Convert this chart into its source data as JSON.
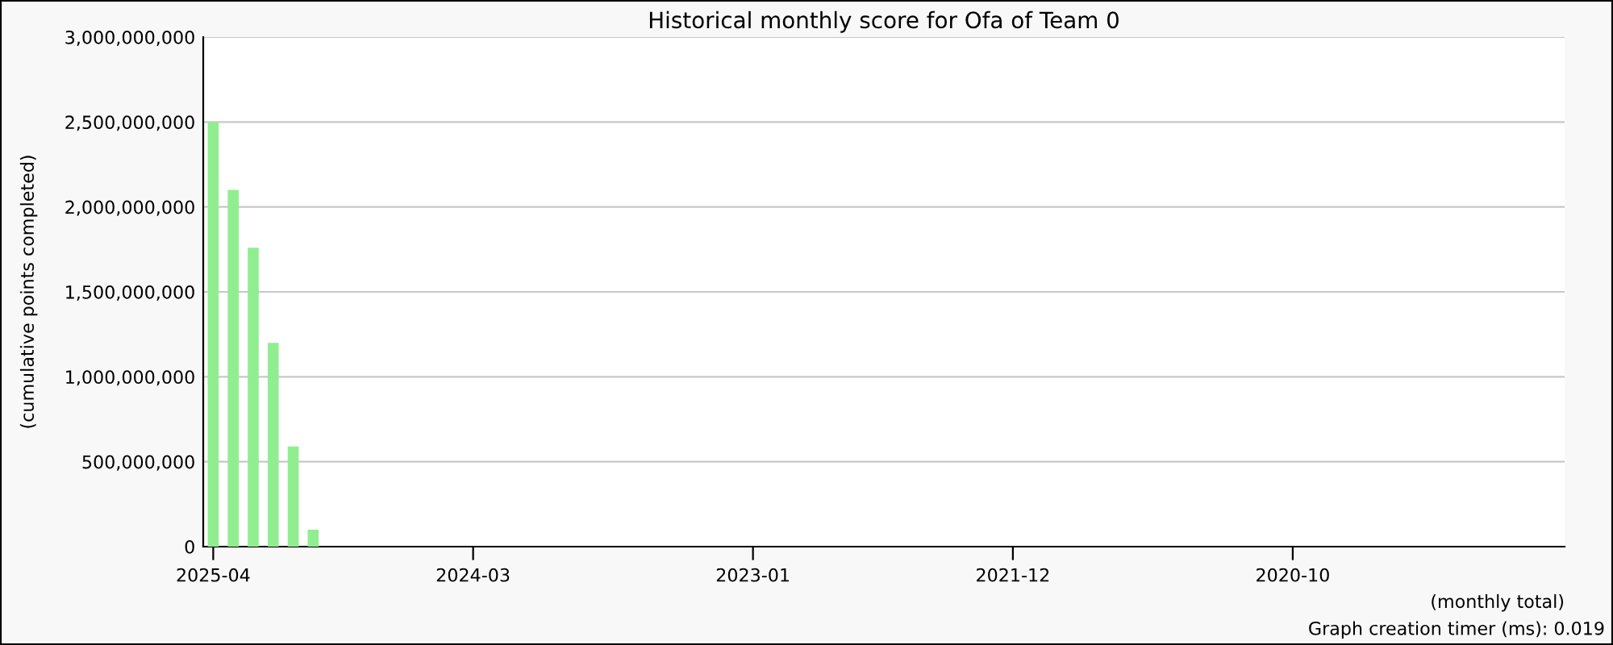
{
  "chart_data": {
    "type": "bar",
    "title": "Historical monthly score for Ofa of Team 0",
    "xlabel": "(monthly total)",
    "ylabel": "(cumulative points completed)",
    "annotations": [
      "Graph creation timer (ms): 0.019"
    ],
    "categories": [
      "2025-04",
      null,
      null,
      null,
      null,
      null,
      null,
      null,
      null,
      null,
      null,
      null,
      null,
      "2024-03",
      null,
      null,
      null,
      null,
      null,
      null,
      null,
      null,
      null,
      null,
      null,
      null,
      null,
      "2023-01",
      null,
      null,
      null,
      null,
      null,
      null,
      null,
      null,
      null,
      null,
      null,
      null,
      "2021-12",
      null,
      null,
      null,
      null,
      null,
      null,
      null,
      null,
      null,
      null,
      null,
      null,
      null,
      "2020-10",
      null,
      null,
      null,
      null,
      null,
      null,
      null,
      null,
      null,
      null,
      null,
      null,
      null
    ],
    "values": [
      2500000000,
      2100000000,
      1760000000,
      1200000000,
      590000000,
      100000000,
      null,
      null,
      null,
      null,
      null,
      null,
      null,
      null,
      null,
      null,
      null,
      null,
      null,
      null,
      null,
      null,
      null,
      null,
      null,
      null,
      null,
      null,
      null,
      null,
      null,
      null,
      null,
      null,
      null,
      null,
      null,
      null,
      null,
      null,
      null,
      null,
      null,
      null,
      null,
      null,
      null,
      null,
      null,
      null,
      null,
      null,
      null,
      null,
      null,
      null,
      null,
      null,
      null,
      null,
      null,
      null,
      null,
      null,
      null,
      null,
      null,
      null
    ],
    "color": "#90ee90",
    "ylim": [
      0,
      3000000000
    ],
    "yticks": [
      {
        "value": 0,
        "label": "0"
      },
      {
        "value": 500000000,
        "label": "500,000,000"
      },
      {
        "value": 1000000000,
        "label": "1,000,000,000"
      },
      {
        "value": 1500000000,
        "label": "1,500,000,000"
      },
      {
        "value": 2000000000,
        "label": "2,000,000,000"
      },
      {
        "value": 2500000000,
        "label": "2,500,000,000"
      },
      {
        "value": 3000000000,
        "label": "3,000,000,000"
      }
    ],
    "grid": "y",
    "legend": false
  }
}
